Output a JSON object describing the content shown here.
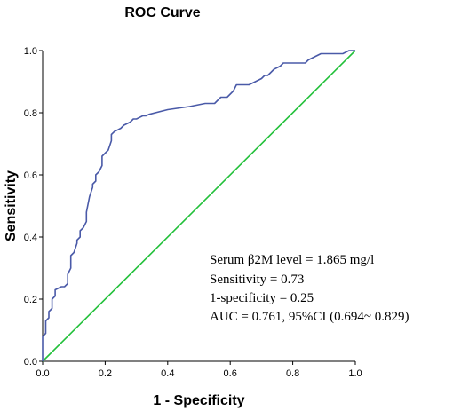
{
  "chart_data": {
    "type": "line",
    "title": "ROC Curve",
    "xlabel": "1 - Specificity",
    "ylabel": "Sensitivity",
    "xlim": [
      0.0,
      1.0
    ],
    "ylim": [
      0.0,
      1.0
    ],
    "x_ticks": [
      "0.0",
      "0.2",
      "0.4",
      "0.6",
      "0.8",
      "1.0"
    ],
    "y_ticks": [
      "0.0",
      "0.2",
      "0.4",
      "0.6",
      "0.8",
      "1.0"
    ],
    "grid": false,
    "legend": "none",
    "series": [
      {
        "color": "#4a5aa8",
        "x": [
          0.0,
          0.0,
          0.01,
          0.01,
          0.02,
          0.02,
          0.03,
          0.03,
          0.04,
          0.04,
          0.06,
          0.07,
          0.08,
          0.08,
          0.09,
          0.09,
          0.1,
          0.11,
          0.11,
          0.12,
          0.12,
          0.13,
          0.14,
          0.14,
          0.15,
          0.16,
          0.16,
          0.17,
          0.17,
          0.18,
          0.18,
          0.19,
          0.19,
          0.2,
          0.21,
          0.22,
          0.22,
          0.23,
          0.24,
          0.25,
          0.26,
          0.28,
          0.29,
          0.3,
          0.31,
          0.32,
          0.33,
          0.34,
          0.4,
          0.47,
          0.52,
          0.55,
          0.56,
          0.57,
          0.59,
          0.6,
          0.61,
          0.62,
          0.63,
          0.66,
          0.68,
          0.7,
          0.71,
          0.72,
          0.73,
          0.74,
          0.75,
          0.76,
          0.77,
          0.79,
          0.8,
          0.82,
          0.84,
          0.85,
          0.87,
          0.89,
          0.92,
          0.93,
          0.96,
          0.98,
          1.0
        ],
        "y": [
          0.0,
          0.08,
          0.09,
          0.13,
          0.14,
          0.16,
          0.17,
          0.2,
          0.21,
          0.23,
          0.24,
          0.24,
          0.25,
          0.28,
          0.3,
          0.34,
          0.35,
          0.38,
          0.39,
          0.4,
          0.42,
          0.43,
          0.45,
          0.48,
          0.53,
          0.56,
          0.57,
          0.58,
          0.6,
          0.61,
          0.61,
          0.63,
          0.66,
          0.67,
          0.68,
          0.71,
          0.73,
          0.74,
          0.745,
          0.75,
          0.76,
          0.77,
          0.78,
          0.78,
          0.785,
          0.79,
          0.79,
          0.795,
          0.81,
          0.82,
          0.83,
          0.83,
          0.84,
          0.85,
          0.85,
          0.86,
          0.87,
          0.89,
          0.89,
          0.89,
          0.9,
          0.91,
          0.92,
          0.92,
          0.93,
          0.94,
          0.945,
          0.95,
          0.96,
          0.96,
          0.96,
          0.96,
          0.96,
          0.97,
          0.98,
          0.99,
          0.99,
          0.99,
          0.99,
          1.0,
          1.0
        ]
      },
      {
        "color": "#22c03a",
        "x": [
          0.0,
          1.0
        ],
        "y": [
          0.0,
          1.0
        ]
      }
    ],
    "annotation": [
      "Serum β2M level = 1.865 mg/l",
      "Sensitivity = 0.73",
      "1-specificity = 0.25",
      "AUC = 0.761, 95%CI (0.694~ 0.829)"
    ]
  }
}
